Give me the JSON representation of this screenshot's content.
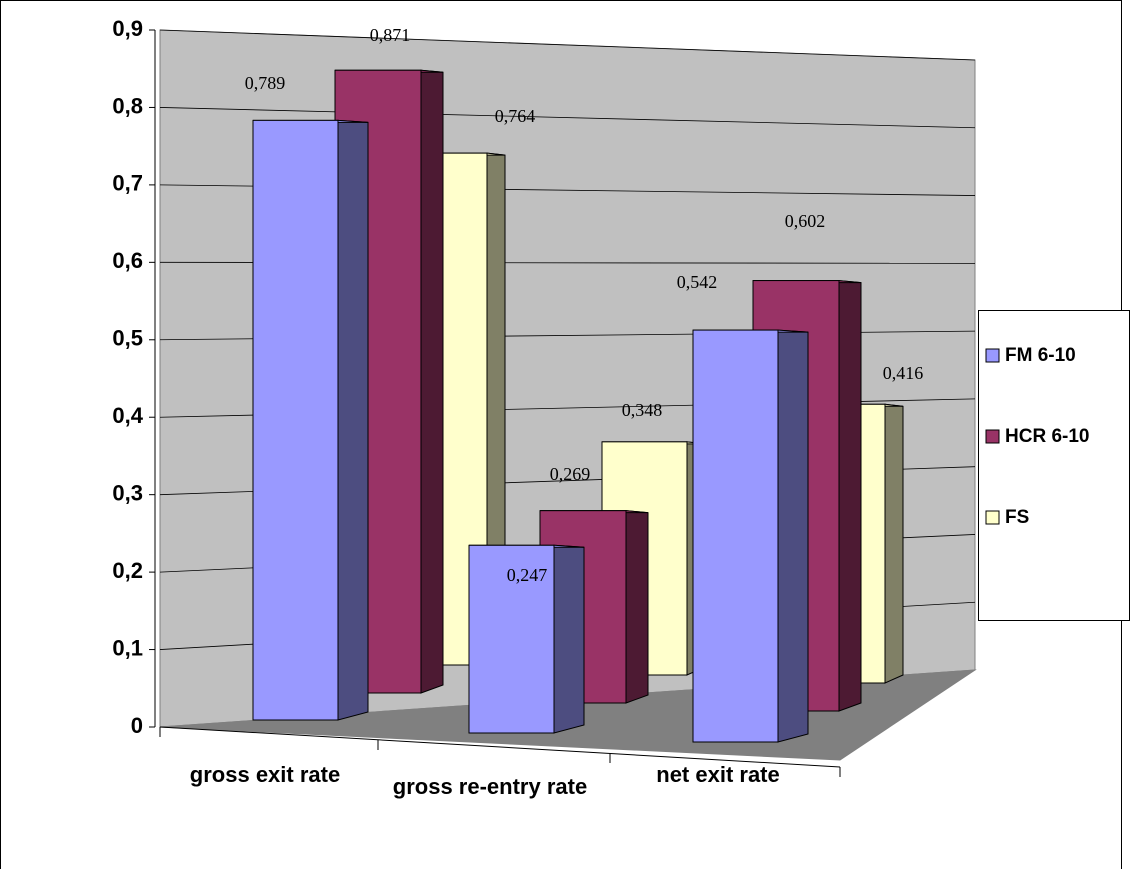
{
  "chart_data": {
    "type": "bar",
    "categories": [
      "gross exit rate",
      "gross re-entry rate",
      "net exit rate"
    ],
    "series": [
      {
        "name": "FM 6-10",
        "color": "#9999ff",
        "values": [
          0.789,
          0.247,
          0.542
        ],
        "value_labels": [
          "0,789",
          "0,247",
          "0,542"
        ]
      },
      {
        "name": "HCR 6-10",
        "color": "#993366",
        "values": [
          0.871,
          0.269,
          0.602
        ],
        "value_labels": [
          "0,871",
          "0,269",
          "0,602"
        ]
      },
      {
        "name": "FS",
        "color": "#ffffcc",
        "values": [
          0.764,
          0.348,
          0.416
        ],
        "value_labels": [
          "0,764",
          "0,348",
          "0,416"
        ]
      }
    ],
    "ylim": [
      0,
      0.9
    ],
    "yticks": [
      0,
      {
        "value": 0.1,
        "label": "0,1"
      },
      {
        "value": 0.2,
        "label": "0,2"
      },
      {
        "value": 0.3,
        "label": "0,3"
      },
      {
        "value": 0.4,
        "label": "0,4"
      },
      {
        "value": 0.5,
        "label": "0,5"
      },
      {
        "value": 0.6,
        "label": "0,6"
      },
      {
        "value": 0.7,
        "label": "0,7"
      },
      {
        "value": 0.8,
        "label": "0,8"
      },
      {
        "value": 0.9,
        "label": "0,9"
      }
    ],
    "grid": true,
    "legend": "right"
  }
}
